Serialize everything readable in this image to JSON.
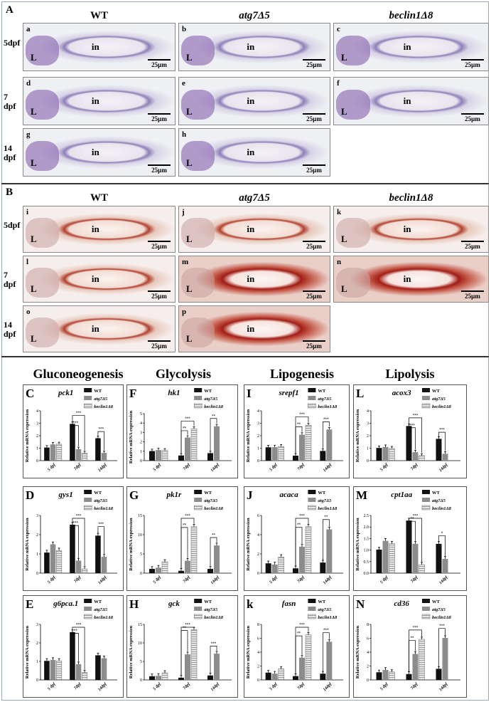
{
  "panelA": {
    "label": "A",
    "columns": [
      "WT",
      "atg7Δ5",
      "beclin1Δ8"
    ],
    "rows": [
      "5dpf",
      "7 dpf",
      "14 dpf"
    ],
    "images": [
      {
        "letter": "a",
        "L": "L",
        "in": "in",
        "scale": "25µm"
      },
      {
        "letter": "b",
        "L": "L",
        "in": "in",
        "scale": "25µm"
      },
      {
        "letter": "c",
        "L": "L",
        "in": "in",
        "scale": "25µm"
      },
      {
        "letter": "d",
        "L": "L",
        "in": "in",
        "scale": "25µm"
      },
      {
        "letter": "e",
        "L": "L",
        "in": "in",
        "scale": "25µm"
      },
      {
        "letter": "f",
        "L": "L",
        "in": "in",
        "scale": "25µm"
      },
      {
        "letter": "g",
        "L": "L",
        "in": "in",
        "scale": "25µm"
      },
      {
        "letter": "h",
        "L": "L",
        "in": "in",
        "scale": "25µm"
      }
    ]
  },
  "panelB": {
    "label": "B",
    "columns": [
      "WT",
      "atg7Δ5",
      "beclin1Δ8"
    ],
    "rows": [
      "5dpf",
      "7 dpf",
      "14 dpf"
    ],
    "images": [
      {
        "letter": "i",
        "L": "L",
        "in": "in",
        "scale": "25µm"
      },
      {
        "letter": "j",
        "L": "L",
        "in": "in",
        "scale": "25µm"
      },
      {
        "letter": "k",
        "L": "L",
        "in": "in",
        "scale": "25µm"
      },
      {
        "letter": "l",
        "L": "L",
        "in": "in",
        "scale": "25µm"
      },
      {
        "letter": "m",
        "L": "L",
        "in": "in",
        "scale": "25µm"
      },
      {
        "letter": "n",
        "L": "L",
        "in": "in",
        "scale": "25µm"
      },
      {
        "letter": "o",
        "L": "L",
        "in": "in",
        "scale": "25µm"
      },
      {
        "letter": "p",
        "L": "L",
        "in": "in",
        "scale": "25µm"
      }
    ]
  },
  "sections": [
    "Gluconeogenesis",
    "Glycolysis",
    "Lipogenesis",
    "Lipolysis"
  ],
  "colors": {
    "WT": "#111111",
    "atg7": "#8c8c8c",
    "beclin": "#d4d4d4"
  },
  "chart_data": [
    {
      "panel": "C",
      "title": "pck1",
      "type": "bar",
      "ylim": [
        0,
        4
      ],
      "ticks": [
        "0",
        "1",
        "2",
        "3",
        "4"
      ],
      "ylabel": "Relative mRNA expression",
      "categories": [
        "5 dpf",
        "7dpf",
        "14dpf"
      ],
      "legend": [
        "WT",
        "atg7Δ5",
        "beclin1Δ8"
      ],
      "series": [
        {
          "name": "WT",
          "values": [
            1.05,
            2.95,
            1.8
          ]
        },
        {
          "name": "atg7Δ5",
          "values": [
            1.3,
            0.92,
            0.62
          ]
        },
        {
          "name": "beclin1Δ8",
          "values": [
            1.32,
            0.6,
            null
          ]
        }
      ],
      "sig": [
        {
          "cat": 1,
          "to": 1,
          "label": "***"
        },
        {
          "cat": 1,
          "to": 2,
          "label": "***"
        },
        {
          "cat": 2,
          "to": 1,
          "label": "***"
        }
      ]
    },
    {
      "panel": "F",
      "title": "hk1",
      "type": "bar",
      "ylim": [
        0,
        5
      ],
      "ticks": [
        "0",
        "1",
        "2",
        "3",
        "4",
        "5"
      ],
      "ylabel": "Relative mRNA expression",
      "categories": [
        "5 dpf",
        "7dpf",
        "14dpf"
      ],
      "legend": [
        "WT",
        "atg7Δ5",
        "beclin1Δ8"
      ],
      "series": [
        {
          "name": "WT",
          "values": [
            1.02,
            0.55,
            0.8
          ]
        },
        {
          "name": "atg7Δ5",
          "values": [
            1.12,
            2.45,
            3.65
          ]
        },
        {
          "name": "beclin1Δ8",
          "values": [
            1.08,
            3.4,
            null
          ]
        }
      ],
      "sig": [
        {
          "cat": 1,
          "to": 1,
          "label": "**"
        },
        {
          "cat": 1,
          "to": 2,
          "label": "***"
        },
        {
          "cat": 2,
          "to": 1,
          "label": "**"
        }
      ]
    },
    {
      "panel": "I",
      "title": "srepf1",
      "type": "bar",
      "ylim": [
        0,
        4
      ],
      "ticks": [
        "0",
        "1",
        "2",
        "3",
        "4"
      ],
      "ylabel": "Relative mRNA expression",
      "categories": [
        "5 dpf",
        "7dpf",
        "14dpf"
      ],
      "legend": [
        "WT",
        "atg7Δ5",
        "beclin1Δ8"
      ],
      "series": [
        {
          "name": "WT",
          "values": [
            1.07,
            0.4,
            0.78
          ]
        },
        {
          "name": "atg7Δ5",
          "values": [
            1.08,
            2.08,
            2.5
          ]
        },
        {
          "name": "beclin1Δ8",
          "values": [
            1.13,
            2.85,
            null
          ]
        }
      ],
      "sig": [
        {
          "cat": 1,
          "to": 1,
          "label": "**"
        },
        {
          "cat": 1,
          "to": 2,
          "label": "***"
        },
        {
          "cat": 2,
          "to": 1,
          "label": "***"
        }
      ]
    },
    {
      "panel": "L",
      "title": "acox3",
      "type": "bar",
      "ylim": [
        0,
        4
      ],
      "ticks": [
        "0",
        "1",
        "2",
        "3",
        "4"
      ],
      "ylabel": "Relative mRNA expression",
      "categories": [
        "5 dpf",
        "7dpf",
        "14dpf"
      ],
      "legend": [
        "WT",
        "atg7Δ5",
        "beclin1Δ8"
      ],
      "series": [
        {
          "name": "WT",
          "values": [
            1.02,
            2.78,
            1.75
          ]
        },
        {
          "name": "atg7Δ5",
          "values": [
            1.1,
            0.68,
            0.55
          ]
        },
        {
          "name": "beclin1Δ8",
          "values": [
            0.98,
            0.4,
            null
          ]
        }
      ],
      "sig": [
        {
          "cat": 1,
          "to": 1,
          "label": "***"
        },
        {
          "cat": 1,
          "to": 2,
          "label": "***"
        },
        {
          "cat": 2,
          "to": 1,
          "label": "***"
        }
      ]
    },
    {
      "panel": "D",
      "title": "gys1",
      "type": "bar",
      "ylim": [
        0,
        3
      ],
      "ticks": [
        "0",
        "1",
        "2",
        "3"
      ],
      "ylabel": "Relative mRNA expression",
      "categories": [
        "5 dpf",
        "7dpf",
        "14dpf"
      ],
      "legend": [
        "WT",
        "atg7Δ5",
        "beclin1Δ8"
      ],
      "series": [
        {
          "name": "WT",
          "values": [
            1.07,
            2.52,
            1.95
          ]
        },
        {
          "name": "atg7Δ5",
          "values": [
            1.5,
            0.65,
            0.85
          ]
        },
        {
          "name": "beclin1Δ8",
          "values": [
            1.18,
            0.22,
            null
          ]
        }
      ],
      "sig": [
        {
          "cat": 1,
          "to": 1,
          "label": "***"
        },
        {
          "cat": 1,
          "to": 2,
          "label": "***"
        },
        {
          "cat": 2,
          "to": 1,
          "label": "***"
        }
      ]
    },
    {
      "panel": "G",
      "title": "pk1r",
      "type": "bar",
      "ylim": [
        0,
        15
      ],
      "ticks": [
        "0",
        "5",
        "10",
        "15"
      ],
      "ylabel": "Relative mRNA expression",
      "categories": [
        "5 dpf",
        "7dpf",
        "14dpf"
      ],
      "legend": [
        "WT",
        "atg7Δ5",
        "beclin1Δ8"
      ],
      "series": [
        {
          "name": "WT",
          "values": [
            1.1,
            0.6,
            1.1
          ]
        },
        {
          "name": "atg7Δ5",
          "values": [
            1.4,
            3.2,
            7.2
          ]
        },
        {
          "name": "beclin1Δ8",
          "values": [
            2.9,
            12.1,
            null
          ]
        }
      ],
      "sig": [
        {
          "cat": 1,
          "to": 1,
          "label": "**"
        },
        {
          "cat": 1,
          "to": 2,
          "label": "***"
        },
        {
          "cat": 2,
          "to": 1,
          "label": "**"
        }
      ]
    },
    {
      "panel": "J",
      "title": "acaca",
      "type": "bar",
      "ylim": [
        0,
        6
      ],
      "ticks": [
        "0",
        "2",
        "4",
        "6"
      ],
      "ylabel": "Relative mRNA expression",
      "categories": [
        "5 dpf",
        "7dpf",
        "14dpf"
      ],
      "legend": [
        "WT",
        "atg7Δ5",
        "beclin1Δ8"
      ],
      "series": [
        {
          "name": "WT",
          "values": [
            1.02,
            0.5,
            1.1
          ]
        },
        {
          "name": "atg7Δ5",
          "values": [
            0.9,
            2.75,
            4.55
          ]
        },
        {
          "name": "beclin1Δ8",
          "values": [
            1.68,
            4.85,
            null
          ]
        }
      ],
      "sig": [
        {
          "cat": 1,
          "to": 1,
          "label": "**"
        },
        {
          "cat": 1,
          "to": 2,
          "label": "***"
        },
        {
          "cat": 2,
          "to": 1,
          "label": "**"
        }
      ]
    },
    {
      "panel": "M",
      "title": "cpt1aa",
      "type": "bar",
      "ylim": [
        0,
        2.5
      ],
      "ticks": [
        "0.0",
        "0.5",
        "1.0",
        "1.5",
        "2.0",
        "2.5"
      ],
      "ylabel": "Relative mRNA expression",
      "categories": [
        "5 dpf",
        "7dpf",
        "14dpf"
      ],
      "legend": [
        "WT",
        "atg7Δ5",
        "beclin1Δ8"
      ],
      "series": [
        {
          "name": "WT",
          "values": [
            1.02,
            2.28,
            1.27
          ]
        },
        {
          "name": "atg7Δ5",
          "values": [
            1.4,
            1.27,
            0.62
          ]
        },
        {
          "name": "beclin1Δ8",
          "values": [
            1.28,
            0.37,
            null
          ]
        }
      ],
      "sig": [
        {
          "cat": 1,
          "to": 1,
          "label": "**"
        },
        {
          "cat": 1,
          "to": 2,
          "label": "***"
        },
        {
          "cat": 2,
          "to": 1,
          "label": "*"
        }
      ]
    },
    {
      "panel": "E",
      "title": "g6pca.1",
      "type": "bar",
      "ylim": [
        0,
        3
      ],
      "ticks": [
        "0",
        "1",
        "2",
        "3"
      ],
      "ylabel": "Relative mRNA expression",
      "categories": [
        "5 dpf",
        "7dpf",
        "14dpf"
      ],
      "legend": [
        "WT",
        "atg7Δ5",
        "beclin1Δ8"
      ],
      "series": [
        {
          "name": "WT",
          "values": [
            1.03,
            2.58,
            1.33
          ]
        },
        {
          "name": "atg7Δ5",
          "values": [
            1.08,
            0.85,
            1.17
          ]
        },
        {
          "name": "beclin1Δ8",
          "values": [
            1.03,
            0.4,
            null
          ]
        }
      ],
      "sig": [
        {
          "cat": 1,
          "to": 1,
          "label": "**"
        },
        {
          "cat": 1,
          "to": 2,
          "label": "***"
        }
      ]
    },
    {
      "panel": "H",
      "title": "gck",
      "type": "bar",
      "ylim": [
        0,
        15
      ],
      "ticks": [
        "0",
        "5",
        "10",
        "15"
      ],
      "ylabel": "Relative mRNA expression",
      "categories": [
        "5 dpf",
        "7dpf",
        "14dpf"
      ],
      "legend": [
        "WT",
        "atg7Δ5",
        "beclin1Δ8"
      ],
      "series": [
        {
          "name": "WT",
          "values": [
            1.0,
            0.6,
            1.2
          ]
        },
        {
          "name": "atg7Δ5",
          "values": [
            1.1,
            6.9,
            7.1
          ]
        },
        {
          "name": "beclin1Δ8",
          "values": [
            1.9,
            13.6,
            null
          ]
        }
      ],
      "sig": [
        {
          "cat": 1,
          "to": 1,
          "label": "**"
        },
        {
          "cat": 1,
          "to": 2,
          "label": "***"
        },
        {
          "cat": 2,
          "to": 1,
          "label": "***"
        }
      ]
    },
    {
      "panel": "k",
      "title": "fasn",
      "type": "bar",
      "ylim": [
        0,
        8
      ],
      "ticks": [
        "0",
        "2",
        "4",
        "6",
        "8"
      ],
      "ylabel": "Relative mRNA expression",
      "categories": [
        "5 dpf",
        "7dpf",
        "14dpf"
      ],
      "legend": [
        "WT",
        "atg7Δ5",
        "beclin1Δ8"
      ],
      "series": [
        {
          "name": "WT",
          "values": [
            1.05,
            0.55,
            0.9
          ]
        },
        {
          "name": "atg7Δ5",
          "values": [
            0.9,
            3.2,
            5.5
          ]
        },
        {
          "name": "beclin1Δ8",
          "values": [
            1.6,
            6.5,
            null
          ]
        }
      ],
      "sig": [
        {
          "cat": 1,
          "to": 1,
          "label": "**"
        },
        {
          "cat": 1,
          "to": 2,
          "label": "***"
        },
        {
          "cat": 2,
          "to": 1,
          "label": "***"
        }
      ]
    },
    {
      "panel": "N",
      "title": "cd36",
      "type": "bar",
      "ylim": [
        0,
        8
      ],
      "ticks": [
        "0",
        "2",
        "4",
        "6",
        "8"
      ],
      "ylabel": "Relative mRNA expression",
      "categories": [
        "5 dpf",
        "7dpf",
        "14dpf"
      ],
      "legend": [
        "WT",
        "atg7Δ5",
        "beclin1Δ8"
      ],
      "series": [
        {
          "name": "WT",
          "values": [
            1.1,
            0.85,
            1.6
          ]
        },
        {
          "name": "atg7Δ5",
          "values": [
            1.45,
            3.75,
            6.05
          ]
        },
        {
          "name": "beclin1Δ8",
          "values": [
            1.15,
            5.85,
            null
          ]
        }
      ],
      "sig": [
        {
          "cat": 1,
          "to": 1,
          "label": "**"
        },
        {
          "cat": 1,
          "to": 2,
          "label": "***"
        },
        {
          "cat": 2,
          "to": 1,
          "label": "***"
        }
      ]
    }
  ]
}
